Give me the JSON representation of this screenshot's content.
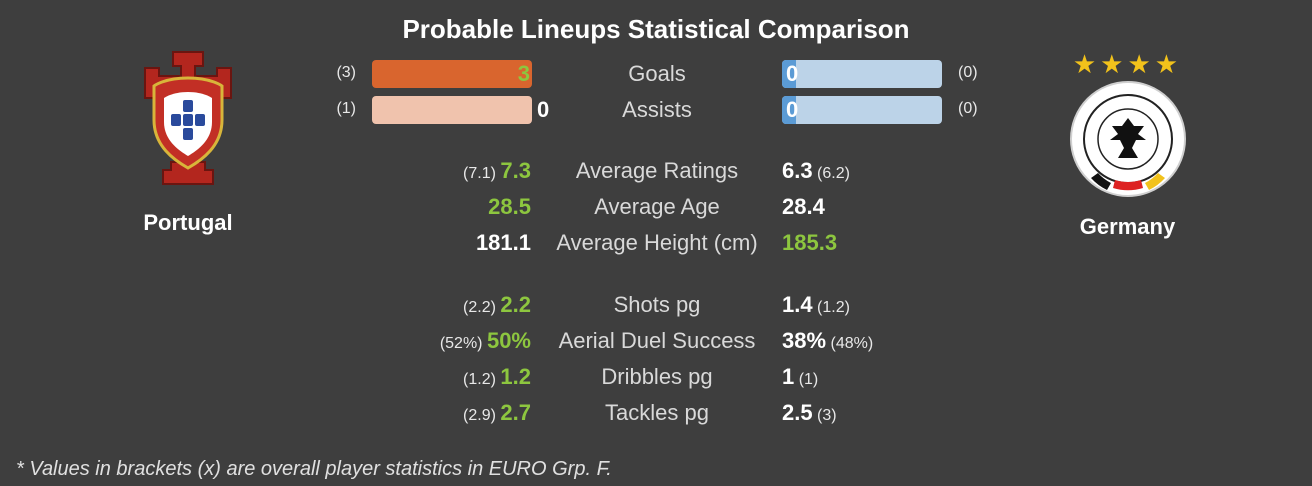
{
  "title": "Probable Lineups Statistical Comparison",
  "teams": {
    "left": {
      "name": "Portugal",
      "crest": "portugal-crest"
    },
    "right": {
      "name": "Germany",
      "crest": "germany-crest",
      "stars": "★★★★"
    }
  },
  "bars": [
    {
      "label": "Goals",
      "left_overall": "(3)",
      "left_value": "3",
      "right_overall": "(0)",
      "right_value": "0"
    },
    {
      "label": "Assists",
      "left_overall": "(1)",
      "left_value": "0",
      "right_overall": "(0)",
      "right_value": "0"
    }
  ],
  "stats": [
    {
      "label": "Average Ratings",
      "left_overall": "(7.1)",
      "left_value": "7.3",
      "right_value": "6.3",
      "right_overall": "(6.2)"
    },
    {
      "label": "Average Age",
      "left_overall": "",
      "left_value": "28.5",
      "right_value": "28.4",
      "right_overall": ""
    },
    {
      "label": "Average Height (cm)",
      "left_overall": "",
      "left_value": "181.1",
      "right_value": "185.3",
      "right_overall": ""
    },
    {
      "label": "Shots pg",
      "left_overall": "(2.2)",
      "left_value": "2.2",
      "right_value": "1.4",
      "right_overall": "(1.2)"
    },
    {
      "label": "Aerial Duel Success",
      "left_overall": "(52%)",
      "left_value": "50%",
      "right_value": "38%",
      "right_overall": "(48%)"
    },
    {
      "label": "Dribbles pg",
      "left_overall": "(1.2)",
      "left_value": "1.2",
      "right_value": "1",
      "right_overall": "(1)"
    },
    {
      "label": "Tackles pg",
      "left_overall": "(2.9)",
      "left_value": "2.7",
      "right_value": "2.5",
      "right_overall": "(3)"
    }
  ],
  "footnote": "* Values in brackets (x) are overall player statistics in EURO Grp. F.",
  "colors": {
    "highlight": "#8dc63f",
    "left_bar": "#d9652e",
    "left_bar_light": "#f0c3ad",
    "right_bar": "#bcd3e8",
    "right_bar_accent": "#5b9bd5"
  }
}
